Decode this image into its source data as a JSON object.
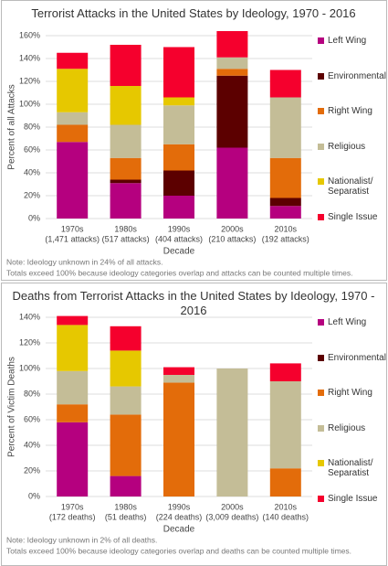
{
  "chart_data": [
    {
      "type": "stacked_bar",
      "title": "Terrorist Attacks in the United States by Ideology, 1970 - 2016",
      "categories": [
        "1970s",
        "1980s",
        "1990s",
        "2000s",
        "2010s"
      ],
      "category_sublabels": [
        "(1,471 attacks)",
        "(517 attacks)",
        "(404 attacks)",
        "(210 attacks)",
        "(192 attacks)"
      ],
      "xlabel": "Decade",
      "ylabel": "Percent of all Attacks",
      "ylim": [
        0,
        160
      ],
      "yticks": [
        {
          "value": 0,
          "label": "0%"
        },
        {
          "value": 20,
          "label": "20%"
        },
        {
          "value": 40,
          "label": "40%"
        },
        {
          "value": 60,
          "label": "60%"
        },
        {
          "value": 80,
          "label": "80%"
        },
        {
          "value": 100,
          "label": "100%"
        },
        {
          "value": 120,
          "label": "120%"
        },
        {
          "value": 140,
          "label": "140%"
        },
        {
          "value": 160,
          "label": "160%"
        }
      ],
      "grid": true,
      "series": [
        {
          "name": "Left Wing",
          "color": "#b5007f",
          "values": [
            67,
            31,
            20,
            62,
            11
          ]
        },
        {
          "name": "Environmental",
          "color": "#5c0000",
          "values": [
            0,
            3,
            22,
            63,
            7
          ]
        },
        {
          "name": "Right Wing",
          "color": "#e36c0a",
          "values": [
            15,
            19,
            23,
            6,
            35
          ]
        },
        {
          "name": "Religious",
          "color": "#c4bd97",
          "values": [
            11,
            29,
            34,
            10,
            53
          ]
        },
        {
          "name": "Nationalist/ Separatist",
          "color": "#e6c800",
          "values": [
            38,
            34,
            7,
            0,
            0
          ]
        },
        {
          "name": "Single Issue",
          "color": "#f5002d",
          "values": [
            14,
            36,
            44,
            23,
            24
          ]
        }
      ],
      "notes": [
        "Note: Ideology unknown in 24% of all attacks.",
        "Totals exceed 100% because ideology categories overlap and attacks can be counted multiple times."
      ]
    },
    {
      "type": "stacked_bar",
      "title": "Deaths from Terrorist Attacks in the United States by Ideology, 1970 - 2016",
      "categories": [
        "1970s",
        "1980s",
        "1990s",
        "2000s",
        "2010s"
      ],
      "category_sublabels": [
        "(172 deaths)",
        "(51 deaths)",
        "(224 deaths)",
        "(3,009 deaths)",
        "(140 deaths)"
      ],
      "xlabel": "Decade",
      "ylabel": "Percent of Victim Deaths",
      "ylim": [
        0,
        140
      ],
      "yticks": [
        {
          "value": 0,
          "label": "0%"
        },
        {
          "value": 20,
          "label": "20%"
        },
        {
          "value": 40,
          "label": "40%"
        },
        {
          "value": 60,
          "label": "60%"
        },
        {
          "value": 80,
          "label": "80%"
        },
        {
          "value": 100,
          "label": "100%"
        },
        {
          "value": 120,
          "label": "120%"
        },
        {
          "value": 140,
          "label": "140%"
        }
      ],
      "grid": true,
      "series": [
        {
          "name": "Left Wing",
          "color": "#b5007f",
          "values": [
            58,
            16,
            0,
            0,
            0
          ]
        },
        {
          "name": "Environmental",
          "color": "#5c0000",
          "values": [
            0,
            0,
            0,
            0,
            0
          ]
        },
        {
          "name": "Right Wing",
          "color": "#e36c0a",
          "values": [
            14,
            48,
            89,
            0,
            22
          ]
        },
        {
          "name": "Religious",
          "color": "#c4bd97",
          "values": [
            26,
            22,
            6,
            100,
            68
          ]
        },
        {
          "name": "Nationalist/ Separatist",
          "color": "#e6c800",
          "values": [
            36,
            28,
            0,
            0,
            0
          ]
        },
        {
          "name": "Single Issue",
          "color": "#f5002d",
          "values": [
            7,
            19,
            6,
            0,
            14
          ]
        }
      ],
      "notes": [
        "Note: Ideology unknown in 2% of all deaths.",
        "Totals exceed 100% because ideology categories overlap and deaths can be counted multiple times."
      ]
    }
  ]
}
